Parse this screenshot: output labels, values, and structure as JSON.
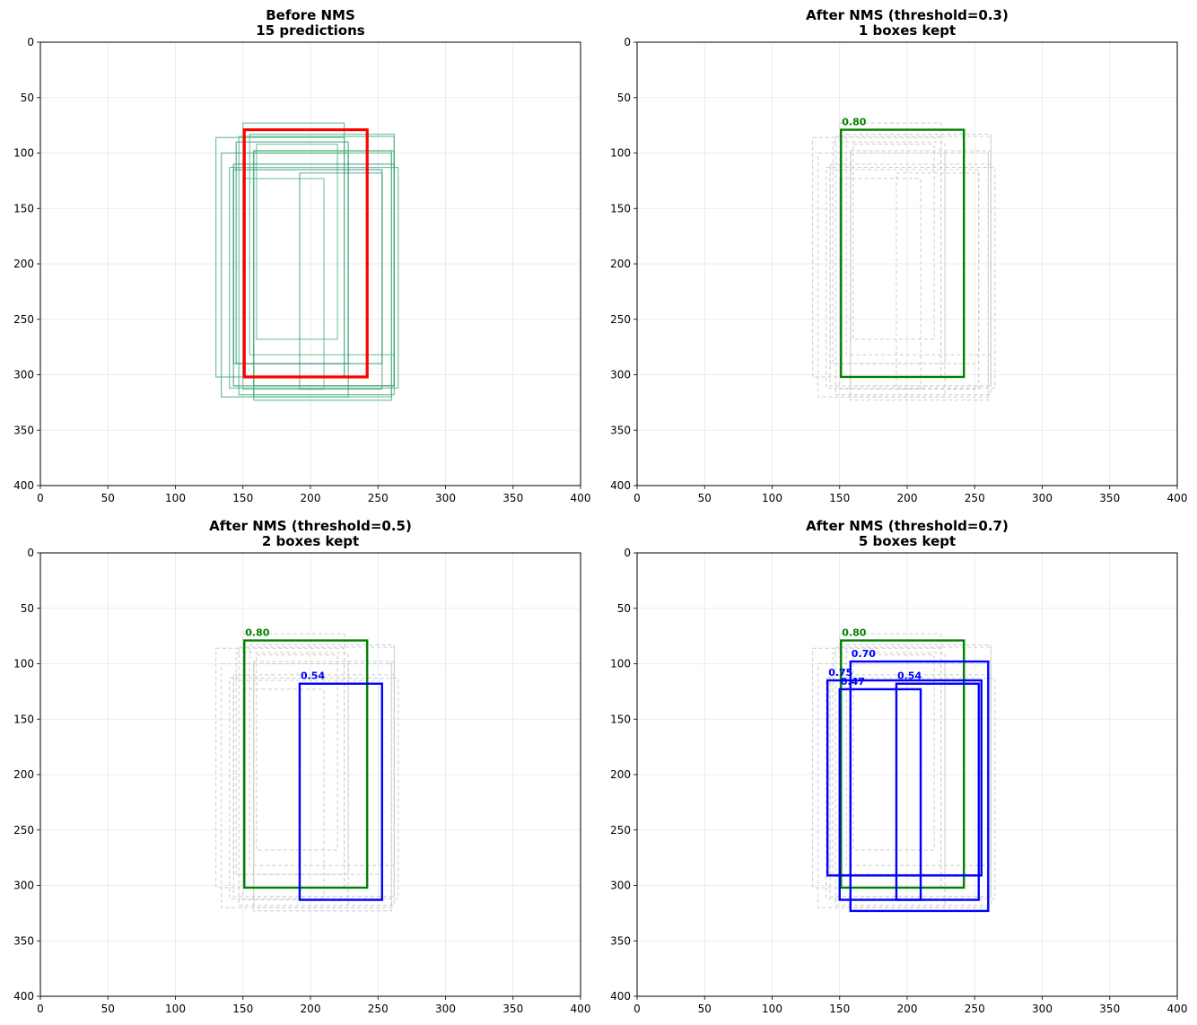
{
  "chart_data": [
    {
      "type": "box-plot-image-axes",
      "title_line1": "Before NMS",
      "title_line2": "15 predictions",
      "xlim": [
        0,
        400
      ],
      "ylim": [
        400,
        0
      ],
      "x_ticks": [
        0,
        50,
        100,
        150,
        200,
        250,
        300,
        350,
        400
      ],
      "y_ticks": [
        0,
        50,
        100,
        150,
        200,
        250,
        300,
        350,
        400
      ],
      "grid": true,
      "predictions": [
        {
          "x1": 130,
          "y1": 86,
          "x2": 225,
          "y2": 302
        },
        {
          "x1": 150,
          "y1": 73,
          "x2": 225,
          "y2": 302
        },
        {
          "x1": 145,
          "y1": 90,
          "x2": 228,
          "y2": 290
        },
        {
          "x1": 160,
          "y1": 92,
          "x2": 220,
          "y2": 268
        },
        {
          "x1": 134,
          "y1": 100,
          "x2": 228,
          "y2": 320
        },
        {
          "x1": 147,
          "y1": 85,
          "x2": 262,
          "y2": 318
        },
        {
          "x1": 140,
          "y1": 113,
          "x2": 265,
          "y2": 312
        },
        {
          "x1": 143,
          "y1": 110,
          "x2": 262,
          "y2": 310
        },
        {
          "x1": 155,
          "y1": 83,
          "x2": 262,
          "y2": 282
        },
        {
          "x1": 158,
          "y1": 98,
          "x2": 262,
          "y2": 310
        },
        {
          "x1": 158,
          "y1": 98,
          "x2": 260,
          "y2": 320
        },
        {
          "x1": 158,
          "y1": 100,
          "x2": 260,
          "y2": 323
        },
        {
          "x1": 143,
          "y1": 115,
          "x2": 253,
          "y2": 290
        },
        {
          "x1": 150,
          "y1": 123,
          "x2": 210,
          "y2": 313
        },
        {
          "x1": 192,
          "y1": 118,
          "x2": 253,
          "y2": 313
        }
      ],
      "highlight": {
        "x1": 151,
        "y1": 79,
        "x2": 242,
        "y2": 302,
        "color": "#ff0000"
      }
    },
    {
      "type": "box-plot-image-axes",
      "title_line1": "After NMS (threshold=0.3)",
      "title_line2": "1 boxes kept",
      "xlim": [
        0,
        400
      ],
      "ylim": [
        400,
        0
      ],
      "x_ticks": [
        0,
        50,
        100,
        150,
        200,
        250,
        300,
        350,
        400
      ],
      "y_ticks": [
        0,
        50,
        100,
        150,
        200,
        250,
        300,
        350,
        400
      ],
      "grid": true,
      "kept": [
        {
          "x1": 151,
          "y1": 79,
          "x2": 242,
          "y2": 302,
          "score": "0.80",
          "color": "#008000"
        }
      ]
    },
    {
      "type": "box-plot-image-axes",
      "title_line1": "After NMS (threshold=0.5)",
      "title_line2": "2 boxes kept",
      "xlim": [
        0,
        400
      ],
      "ylim": [
        400,
        0
      ],
      "x_ticks": [
        0,
        50,
        100,
        150,
        200,
        250,
        300,
        350,
        400
      ],
      "y_ticks": [
        0,
        50,
        100,
        150,
        200,
        250,
        300,
        350,
        400
      ],
      "grid": true,
      "kept": [
        {
          "x1": 151,
          "y1": 79,
          "x2": 242,
          "y2": 302,
          "score": "0.80",
          "color": "#008000"
        },
        {
          "x1": 192,
          "y1": 118,
          "x2": 253,
          "y2": 313,
          "score": "0.54",
          "color": "#0000ff"
        }
      ]
    },
    {
      "type": "box-plot-image-axes",
      "title_line1": "After NMS (threshold=0.7)",
      "title_line2": "5 boxes kept",
      "xlim": [
        0,
        400
      ],
      "ylim": [
        400,
        0
      ],
      "x_ticks": [
        0,
        50,
        100,
        150,
        200,
        250,
        300,
        350,
        400
      ],
      "y_ticks": [
        0,
        50,
        100,
        150,
        200,
        250,
        300,
        350,
        400
      ],
      "grid": true,
      "kept": [
        {
          "x1": 151,
          "y1": 79,
          "x2": 242,
          "y2": 302,
          "score": "0.80",
          "color": "#008000"
        },
        {
          "x1": 158,
          "y1": 98,
          "x2": 260,
          "y2": 323,
          "score": "0.70",
          "color": "#0000ff"
        },
        {
          "x1": 141,
          "y1": 115,
          "x2": 255,
          "y2": 291,
          "score": "0.75",
          "color": "#0000ff"
        },
        {
          "x1": 150,
          "y1": 123,
          "x2": 210,
          "y2": 313,
          "score": "0.47",
          "color": "#0000ff"
        },
        {
          "x1": 192,
          "y1": 118,
          "x2": 253,
          "y2": 313,
          "score": "0.54",
          "color": "#0000ff"
        }
      ]
    }
  ],
  "colors": {
    "prediction_palette": [
      "#3cb371",
      "#4caf7a",
      "#2e8b8b",
      "#52b788",
      "#40a070"
    ],
    "suppressed": "#cccccc",
    "grid": "#e6e6e6"
  }
}
